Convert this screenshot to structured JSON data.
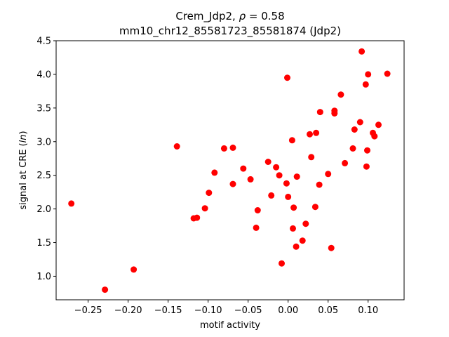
{
  "chart_data": {
    "type": "scatter",
    "title_prefix": "Crem_Jdp2, ",
    "title_rho_symbol": "ρ",
    "title_rho_value": " = 0.58",
    "subtitle": "mm10_chr12_85581723_85581874 (Jdp2)",
    "xlabel": "motif activity",
    "ylabel_prefix": "signal at CRE (",
    "ylabel_italic": "ln",
    "ylabel_suffix": ")",
    "xlim": [
      -0.29,
      0.145
    ],
    "ylim": [
      0.65,
      4.5
    ],
    "xticks": [
      -0.25,
      -0.2,
      -0.15,
      -0.1,
      -0.05,
      0.0,
      0.05,
      0.1
    ],
    "xtick_labels": [
      "−0.25",
      "−0.20",
      "−0.15",
      "−0.10",
      "−0.05",
      "0.00",
      "0.05",
      "0.10"
    ],
    "yticks": [
      1.0,
      1.5,
      2.0,
      2.5,
      3.0,
      3.5,
      4.0,
      4.5
    ],
    "ytick_labels": [
      "1.0",
      "1.5",
      "2.0",
      "2.5",
      "3.0",
      "3.5",
      "4.0",
      "4.5"
    ],
    "grid": false,
    "marker_color": "#ff0000",
    "points": [
      {
        "x": -0.271,
        "y": 2.08
      },
      {
        "x": -0.229,
        "y": 0.8
      },
      {
        "x": -0.193,
        "y": 1.1
      },
      {
        "x": -0.139,
        "y": 2.93
      },
      {
        "x": -0.118,
        "y": 1.86
      },
      {
        "x": -0.114,
        "y": 1.87
      },
      {
        "x": -0.104,
        "y": 2.01
      },
      {
        "x": -0.099,
        "y": 2.24
      },
      {
        "x": -0.092,
        "y": 2.54
      },
      {
        "x": -0.08,
        "y": 2.9
      },
      {
        "x": -0.069,
        "y": 2.91
      },
      {
        "x": -0.069,
        "y": 2.37
      },
      {
        "x": -0.056,
        "y": 2.6
      },
      {
        "x": -0.047,
        "y": 2.44
      },
      {
        "x": -0.04,
        "y": 1.72
      },
      {
        "x": -0.038,
        "y": 1.98
      },
      {
        "x": -0.025,
        "y": 2.7
      },
      {
        "x": -0.021,
        "y": 2.2
      },
      {
        "x": -0.015,
        "y": 2.62
      },
      {
        "x": -0.011,
        "y": 2.5
      },
      {
        "x": -0.008,
        "y": 1.19
      },
      {
        "x": -0.002,
        "y": 2.38
      },
      {
        "x": 0.0,
        "y": 2.18
      },
      {
        "x": -0.001,
        "y": 3.95
      },
      {
        "x": 0.005,
        "y": 3.02
      },
      {
        "x": 0.006,
        "y": 1.71
      },
      {
        "x": 0.007,
        "y": 2.02
      },
      {
        "x": 0.01,
        "y": 1.44
      },
      {
        "x": 0.011,
        "y": 2.48
      },
      {
        "x": 0.018,
        "y": 1.53
      },
      {
        "x": 0.022,
        "y": 1.78
      },
      {
        "x": 0.027,
        "y": 3.11
      },
      {
        "x": 0.029,
        "y": 2.77
      },
      {
        "x": 0.034,
        "y": 2.03
      },
      {
        "x": 0.035,
        "y": 3.13
      },
      {
        "x": 0.039,
        "y": 2.36
      },
      {
        "x": 0.04,
        "y": 3.44
      },
      {
        "x": 0.05,
        "y": 2.52
      },
      {
        "x": 0.054,
        "y": 1.42
      },
      {
        "x": 0.058,
        "y": 3.46
      },
      {
        "x": 0.058,
        "y": 3.42
      },
      {
        "x": 0.066,
        "y": 3.7
      },
      {
        "x": 0.071,
        "y": 2.68
      },
      {
        "x": 0.081,
        "y": 2.9
      },
      {
        "x": 0.083,
        "y": 3.18
      },
      {
        "x": 0.09,
        "y": 3.29
      },
      {
        "x": 0.092,
        "y": 4.34
      },
      {
        "x": 0.097,
        "y": 3.85
      },
      {
        "x": 0.098,
        "y": 2.63
      },
      {
        "x": 0.099,
        "y": 2.87
      },
      {
        "x": 0.1,
        "y": 4.0
      },
      {
        "x": 0.106,
        "y": 3.13
      },
      {
        "x": 0.108,
        "y": 3.08
      },
      {
        "x": 0.113,
        "y": 3.25
      },
      {
        "x": 0.124,
        "y": 4.01
      }
    ]
  }
}
